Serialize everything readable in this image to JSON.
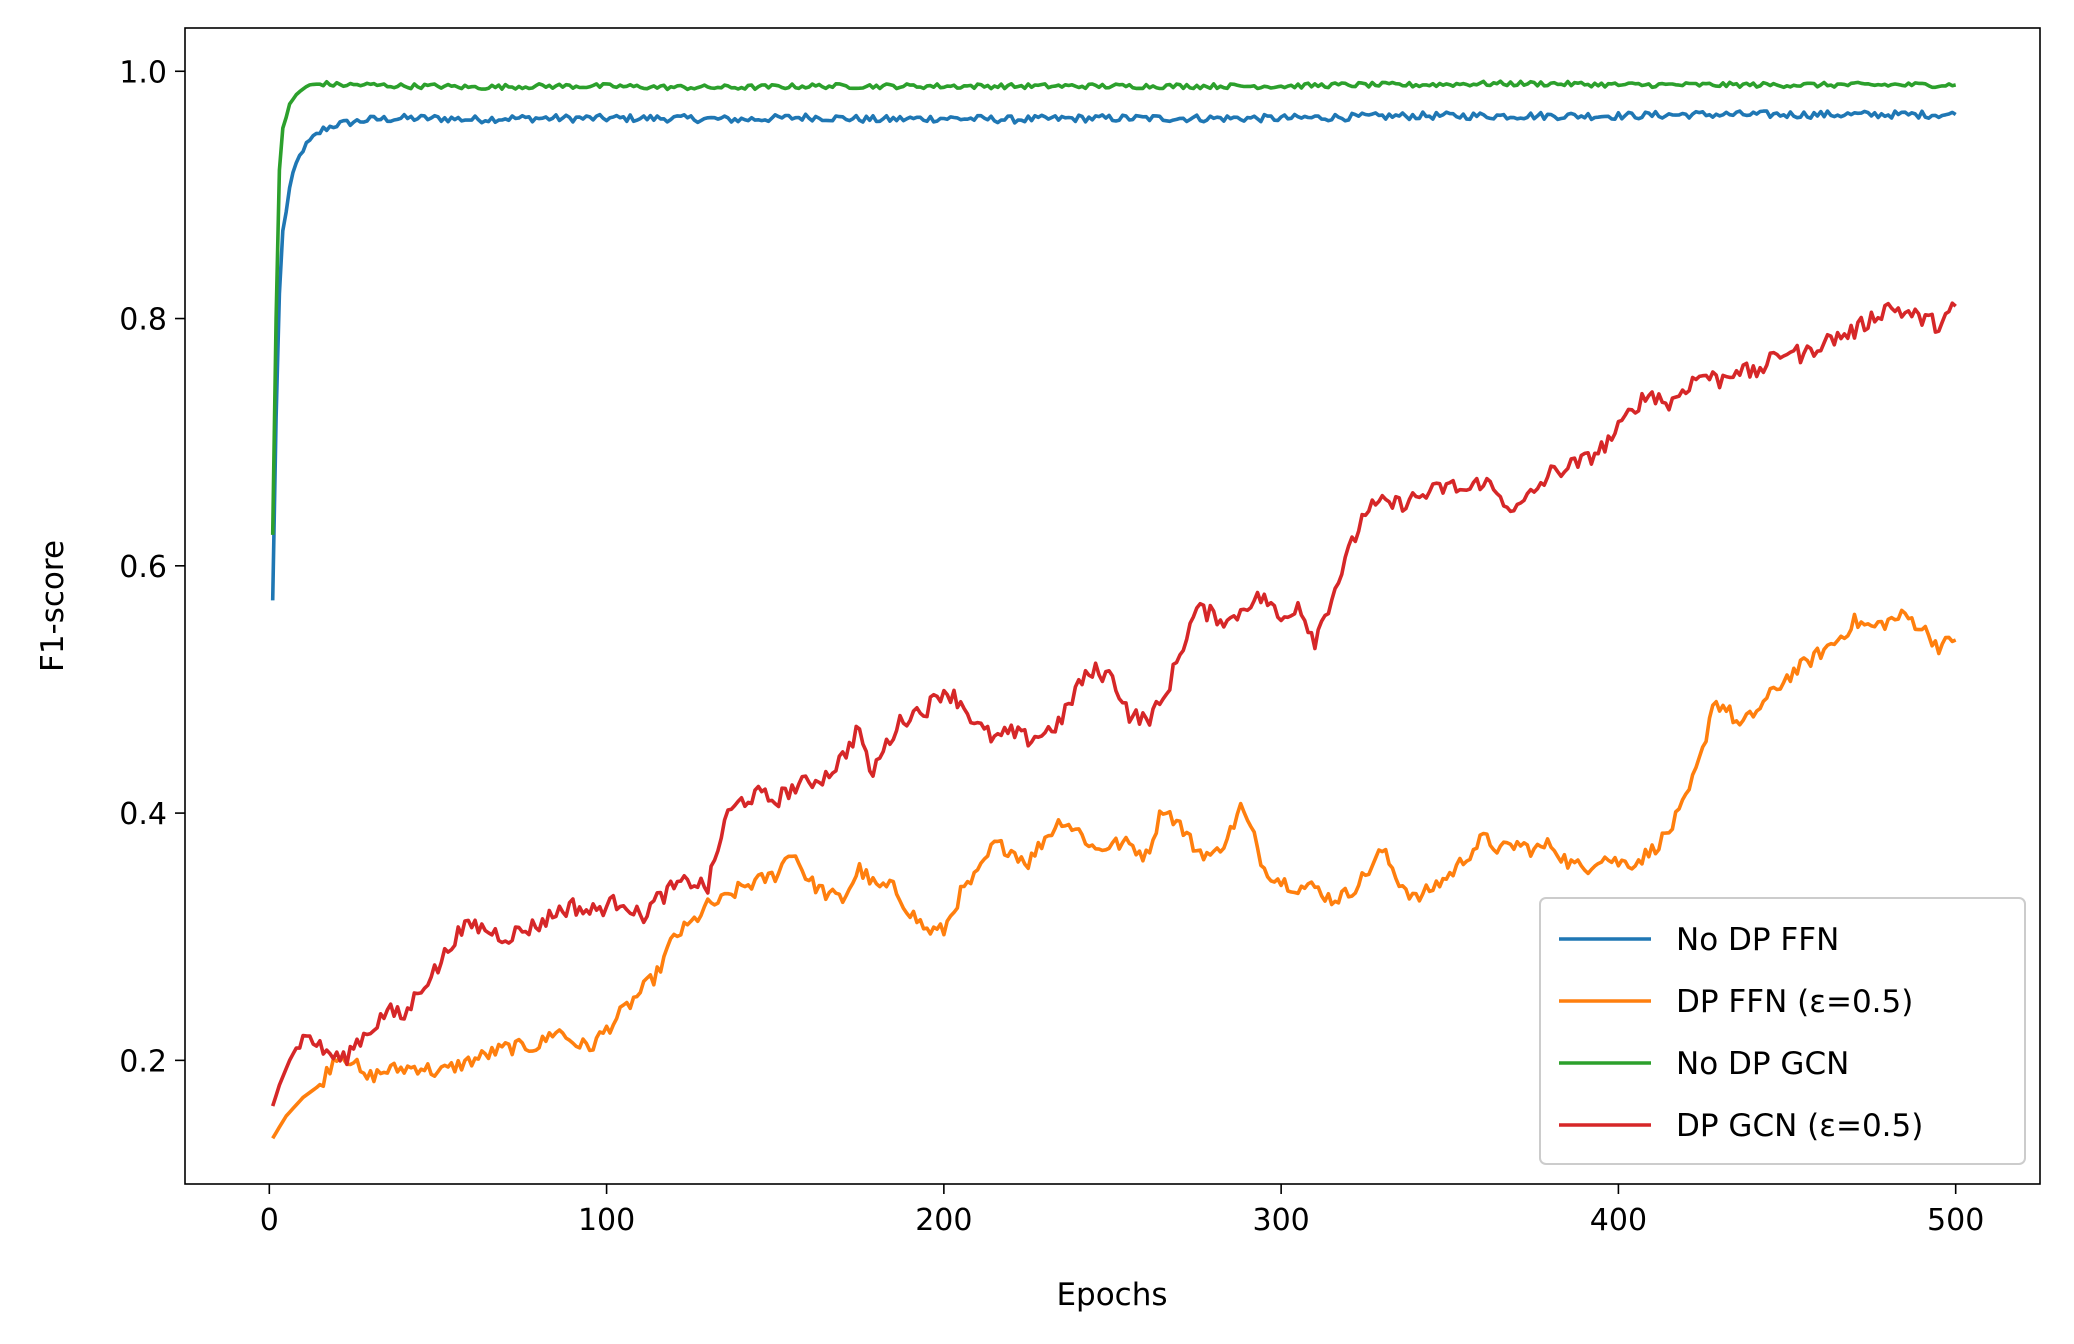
{
  "chart_data": {
    "type": "line",
    "title": "",
    "xlabel": "Epochs",
    "ylabel": "F1-score",
    "xlim": [
      -25,
      525
    ],
    "ylim": [
      0.1,
      1.035
    ],
    "xticks": [
      0,
      100,
      200,
      300,
      400,
      500
    ],
    "xtick_labels": [
      "0",
      "100",
      "200",
      "300",
      "400",
      "500"
    ],
    "yticks": [
      0.2,
      0.4,
      0.6,
      0.8,
      1.0
    ],
    "ytick_labels": [
      "0.2",
      "0.4",
      "0.6",
      "0.8",
      "1.0"
    ],
    "grid": false,
    "legend_position": "lower-right",
    "series": [
      {
        "name": "No DP FFN",
        "color": "#1f77b4",
        "points": [
          [
            1,
            0.572
          ],
          [
            2,
            0.72
          ],
          [
            3,
            0.82
          ],
          [
            4,
            0.87
          ],
          [
            6,
            0.905
          ],
          [
            8,
            0.925
          ],
          [
            10,
            0.937
          ],
          [
            13,
            0.946
          ],
          [
            16,
            0.953
          ],
          [
            20,
            0.957
          ],
          [
            25,
            0.959
          ],
          [
            30,
            0.961
          ],
          [
            40,
            0.962
          ],
          [
            50,
            0.962
          ],
          [
            60,
            0.961
          ],
          [
            70,
            0.962
          ],
          [
            80,
            0.962
          ],
          [
            90,
            0.962
          ],
          [
            100,
            0.962
          ],
          [
            120,
            0.962
          ],
          [
            140,
            0.961
          ],
          [
            160,
            0.963
          ],
          [
            180,
            0.961
          ],
          [
            200,
            0.962
          ],
          [
            220,
            0.961
          ],
          [
            240,
            0.962
          ],
          [
            260,
            0.962
          ],
          [
            280,
            0.962
          ],
          [
            300,
            0.962
          ],
          [
            320,
            0.963
          ],
          [
            340,
            0.964
          ],
          [
            360,
            0.964
          ],
          [
            380,
            0.964
          ],
          [
            400,
            0.964
          ],
          [
            420,
            0.965
          ],
          [
            440,
            0.965
          ],
          [
            460,
            0.965
          ],
          [
            470,
            0.965
          ],
          [
            480,
            0.965
          ],
          [
            490,
            0.965
          ],
          [
            500,
            0.965
          ]
        ]
      },
      {
        "name": "DP FFN (ε=0.5)",
        "color": "#ff7f0e",
        "points": [
          [
            1,
            0.137
          ],
          [
            5,
            0.155
          ],
          [
            10,
            0.17
          ],
          [
            15,
            0.18
          ],
          [
            20,
            0.205
          ],
          [
            25,
            0.2
          ],
          [
            28,
            0.185
          ],
          [
            35,
            0.192
          ],
          [
            45,
            0.195
          ],
          [
            50,
            0.19
          ],
          [
            60,
            0.2
          ],
          [
            70,
            0.21
          ],
          [
            80,
            0.212
          ],
          [
            85,
            0.225
          ],
          [
            90,
            0.215
          ],
          [
            95,
            0.21
          ],
          [
            100,
            0.225
          ],
          [
            105,
            0.24
          ],
          [
            110,
            0.255
          ],
          [
            115,
            0.27
          ],
          [
            120,
            0.3
          ],
          [
            125,
            0.31
          ],
          [
            130,
            0.325
          ],
          [
            135,
            0.33
          ],
          [
            140,
            0.34
          ],
          [
            145,
            0.345
          ],
          [
            150,
            0.35
          ],
          [
            155,
            0.37
          ],
          [
            160,
            0.345
          ],
          [
            165,
            0.335
          ],
          [
            170,
            0.33
          ],
          [
            175,
            0.355
          ],
          [
            180,
            0.34
          ],
          [
            185,
            0.34
          ],
          [
            190,
            0.32
          ],
          [
            195,
            0.305
          ],
          [
            200,
            0.305
          ],
          [
            205,
            0.335
          ],
          [
            210,
            0.35
          ],
          [
            215,
            0.375
          ],
          [
            220,
            0.37
          ],
          [
            225,
            0.36
          ],
          [
            230,
            0.38
          ],
          [
            235,
            0.395
          ],
          [
            240,
            0.385
          ],
          [
            245,
            0.37
          ],
          [
            250,
            0.375
          ],
          [
            255,
            0.375
          ],
          [
            260,
            0.365
          ],
          [
            265,
            0.405
          ],
          [
            270,
            0.39
          ],
          [
            275,
            0.37
          ],
          [
            280,
            0.365
          ],
          [
            285,
            0.385
          ],
          [
            288,
            0.405
          ],
          [
            292,
            0.38
          ],
          [
            295,
            0.355
          ],
          [
            300,
            0.345
          ],
          [
            305,
            0.34
          ],
          [
            310,
            0.34
          ],
          [
            315,
            0.33
          ],
          [
            320,
            0.335
          ],
          [
            325,
            0.35
          ],
          [
            330,
            0.37
          ],
          [
            335,
            0.345
          ],
          [
            340,
            0.33
          ],
          [
            345,
            0.34
          ],
          [
            350,
            0.35
          ],
          [
            355,
            0.365
          ],
          [
            360,
            0.38
          ],
          [
            365,
            0.37
          ],
          [
            370,
            0.375
          ],
          [
            375,
            0.37
          ],
          [
            380,
            0.375
          ],
          [
            385,
            0.36
          ],
          [
            390,
            0.355
          ],
          [
            395,
            0.365
          ],
          [
            400,
            0.36
          ],
          [
            405,
            0.36
          ],
          [
            410,
            0.37
          ],
          [
            415,
            0.385
          ],
          [
            420,
            0.41
          ],
          [
            425,
            0.45
          ],
          [
            428,
            0.49
          ],
          [
            432,
            0.485
          ],
          [
            436,
            0.47
          ],
          [
            440,
            0.48
          ],
          [
            445,
            0.495
          ],
          [
            450,
            0.51
          ],
          [
            455,
            0.52
          ],
          [
            460,
            0.53
          ],
          [
            465,
            0.54
          ],
          [
            470,
            0.555
          ],
          [
            475,
            0.55
          ],
          [
            480,
            0.555
          ],
          [
            485,
            0.56
          ],
          [
            490,
            0.55
          ],
          [
            495,
            0.535
          ],
          [
            500,
            0.54
          ]
        ]
      },
      {
        "name": "No DP GCN",
        "color": "#2ca02c",
        "points": [
          [
            1,
            0.625
          ],
          [
            2,
            0.8
          ],
          [
            3,
            0.92
          ],
          [
            4,
            0.955
          ],
          [
            6,
            0.972
          ],
          [
            8,
            0.981
          ],
          [
            10,
            0.986
          ],
          [
            13,
            0.989
          ],
          [
            16,
            0.99
          ],
          [
            20,
            0.989
          ],
          [
            30,
            0.989
          ],
          [
            40,
            0.988
          ],
          [
            50,
            0.988
          ],
          [
            60,
            0.987
          ],
          [
            80,
            0.988
          ],
          [
            100,
            0.988
          ],
          [
            120,
            0.987
          ],
          [
            140,
            0.987
          ],
          [
            160,
            0.988
          ],
          [
            180,
            0.988
          ],
          [
            200,
            0.988
          ],
          [
            220,
            0.988
          ],
          [
            240,
            0.988
          ],
          [
            260,
            0.988
          ],
          [
            280,
            0.988
          ],
          [
            300,
            0.988
          ],
          [
            320,
            0.989
          ],
          [
            340,
            0.989
          ],
          [
            360,
            0.99
          ],
          [
            380,
            0.99
          ],
          [
            400,
            0.989
          ],
          [
            420,
            0.989
          ],
          [
            440,
            0.989
          ],
          [
            460,
            0.989
          ],
          [
            480,
            0.989
          ],
          [
            500,
            0.989
          ]
        ]
      },
      {
        "name": "DP GCN (ε=0.5)",
        "color": "#d62728",
        "points": [
          [
            1,
            0.163
          ],
          [
            3,
            0.18
          ],
          [
            6,
            0.2
          ],
          [
            9,
            0.215
          ],
          [
            12,
            0.22
          ],
          [
            15,
            0.21
          ],
          [
            18,
            0.205
          ],
          [
            22,
            0.2
          ],
          [
            26,
            0.215
          ],
          [
            30,
            0.225
          ],
          [
            35,
            0.24
          ],
          [
            40,
            0.235
          ],
          [
            45,
            0.26
          ],
          [
            50,
            0.275
          ],
          [
            55,
            0.3
          ],
          [
            60,
            0.31
          ],
          [
            65,
            0.305
          ],
          [
            70,
            0.3
          ],
          [
            80,
            0.31
          ],
          [
            85,
            0.32
          ],
          [
            90,
            0.325
          ],
          [
            95,
            0.32
          ],
          [
            100,
            0.325
          ],
          [
            105,
            0.33
          ],
          [
            110,
            0.315
          ],
          [
            115,
            0.33
          ],
          [
            120,
            0.34
          ],
          [
            125,
            0.345
          ],
          [
            130,
            0.34
          ],
          [
            133,
            0.37
          ],
          [
            135,
            0.395
          ],
          [
            140,
            0.41
          ],
          [
            145,
            0.415
          ],
          [
            150,
            0.41
          ],
          [
            155,
            0.42
          ],
          [
            160,
            0.425
          ],
          [
            165,
            0.43
          ],
          [
            170,
            0.445
          ],
          [
            175,
            0.47
          ],
          [
            178,
            0.43
          ],
          [
            182,
            0.45
          ],
          [
            186,
            0.47
          ],
          [
            190,
            0.48
          ],
          [
            195,
            0.485
          ],
          [
            200,
            0.5
          ],
          [
            205,
            0.49
          ],
          [
            210,
            0.47
          ],
          [
            215,
            0.46
          ],
          [
            220,
            0.465
          ],
          [
            225,
            0.46
          ],
          [
            230,
            0.465
          ],
          [
            235,
            0.475
          ],
          [
            240,
            0.505
          ],
          [
            245,
            0.515
          ],
          [
            250,
            0.51
          ],
          [
            255,
            0.48
          ],
          [
            260,
            0.475
          ],
          [
            265,
            0.49
          ],
          [
            270,
            0.53
          ],
          [
            275,
            0.565
          ],
          [
            280,
            0.56
          ],
          [
            285,
            0.555
          ],
          [
            290,
            0.57
          ],
          [
            295,
            0.575
          ],
          [
            300,
            0.555
          ],
          [
            305,
            0.57
          ],
          [
            310,
            0.54
          ],
          [
            315,
            0.575
          ],
          [
            320,
            0.61
          ],
          [
            325,
            0.645
          ],
          [
            330,
            0.65
          ],
          [
            335,
            0.65
          ],
          [
            340,
            0.655
          ],
          [
            345,
            0.66
          ],
          [
            350,
            0.665
          ],
          [
            355,
            0.66
          ],
          [
            360,
            0.67
          ],
          [
            365,
            0.655
          ],
          [
            370,
            0.645
          ],
          [
            375,
            0.66
          ],
          [
            380,
            0.675
          ],
          [
            385,
            0.68
          ],
          [
            390,
            0.685
          ],
          [
            395,
            0.695
          ],
          [
            400,
            0.71
          ],
          [
            405,
            0.73
          ],
          [
            410,
            0.74
          ],
          [
            415,
            0.73
          ],
          [
            420,
            0.745
          ],
          [
            425,
            0.755
          ],
          [
            430,
            0.75
          ],
          [
            435,
            0.76
          ],
          [
            440,
            0.755
          ],
          [
            445,
            0.765
          ],
          [
            450,
            0.775
          ],
          [
            455,
            0.77
          ],
          [
            460,
            0.78
          ],
          [
            465,
            0.785
          ],
          [
            470,
            0.79
          ],
          [
            475,
            0.8
          ],
          [
            480,
            0.81
          ],
          [
            485,
            0.805
          ],
          [
            490,
            0.8
          ],
          [
            495,
            0.795
          ],
          [
            500,
            0.81
          ]
        ]
      }
    ]
  }
}
